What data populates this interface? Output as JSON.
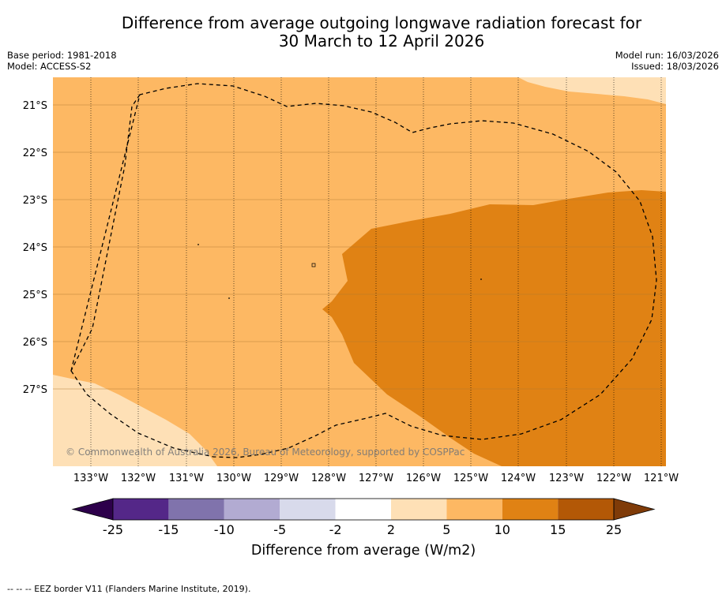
{
  "title": {
    "line1": "Difference from average outgoing longwave radiation forecast for",
    "line2": "30 March to 12 April 2026"
  },
  "meta": {
    "base_period": "Base period: 1981-2018",
    "model": "Model: ACCESS-S2",
    "model_run": "Model run: 16/03/2026",
    "issued": "Issued: 18/03/2026"
  },
  "map": {
    "lat_labels": [
      "21°S",
      "22°S",
      "23°S",
      "24°S",
      "25°S",
      "26°S",
      "27°S"
    ],
    "lon_labels": [
      "133°W",
      "132°W",
      "131°W",
      "130°W",
      "129°W",
      "128°W",
      "127°W",
      "126°W",
      "125°W",
      "124°W",
      "123°W",
      "122°W",
      "121°W"
    ],
    "copyright": "© Commonwealth of Australia 2026, Bureau of Meteorology, supported by COSPPac",
    "colors": {
      "bin_2_5": "#fee0b6",
      "bin_5_10": "#fdb863",
      "bin_10_15": "#e08214"
    }
  },
  "colorbar": {
    "tick_labels": [
      "-25",
      "-15",
      "-10",
      "-5",
      "-2",
      "2",
      "5",
      "10",
      "15",
      "25"
    ],
    "label": "Difference from average (W/m2)",
    "colors": [
      "#2d004b",
      "#542788",
      "#8073ac",
      "#b2abd2",
      "#d8daeb",
      "#ffffff",
      "#fee0b6",
      "#fdb863",
      "#e08214",
      "#b35806",
      "#7f3b08"
    ]
  },
  "footer": "-- -- -- EEZ border V11 (Flanders Marine Institute, 2019)."
}
